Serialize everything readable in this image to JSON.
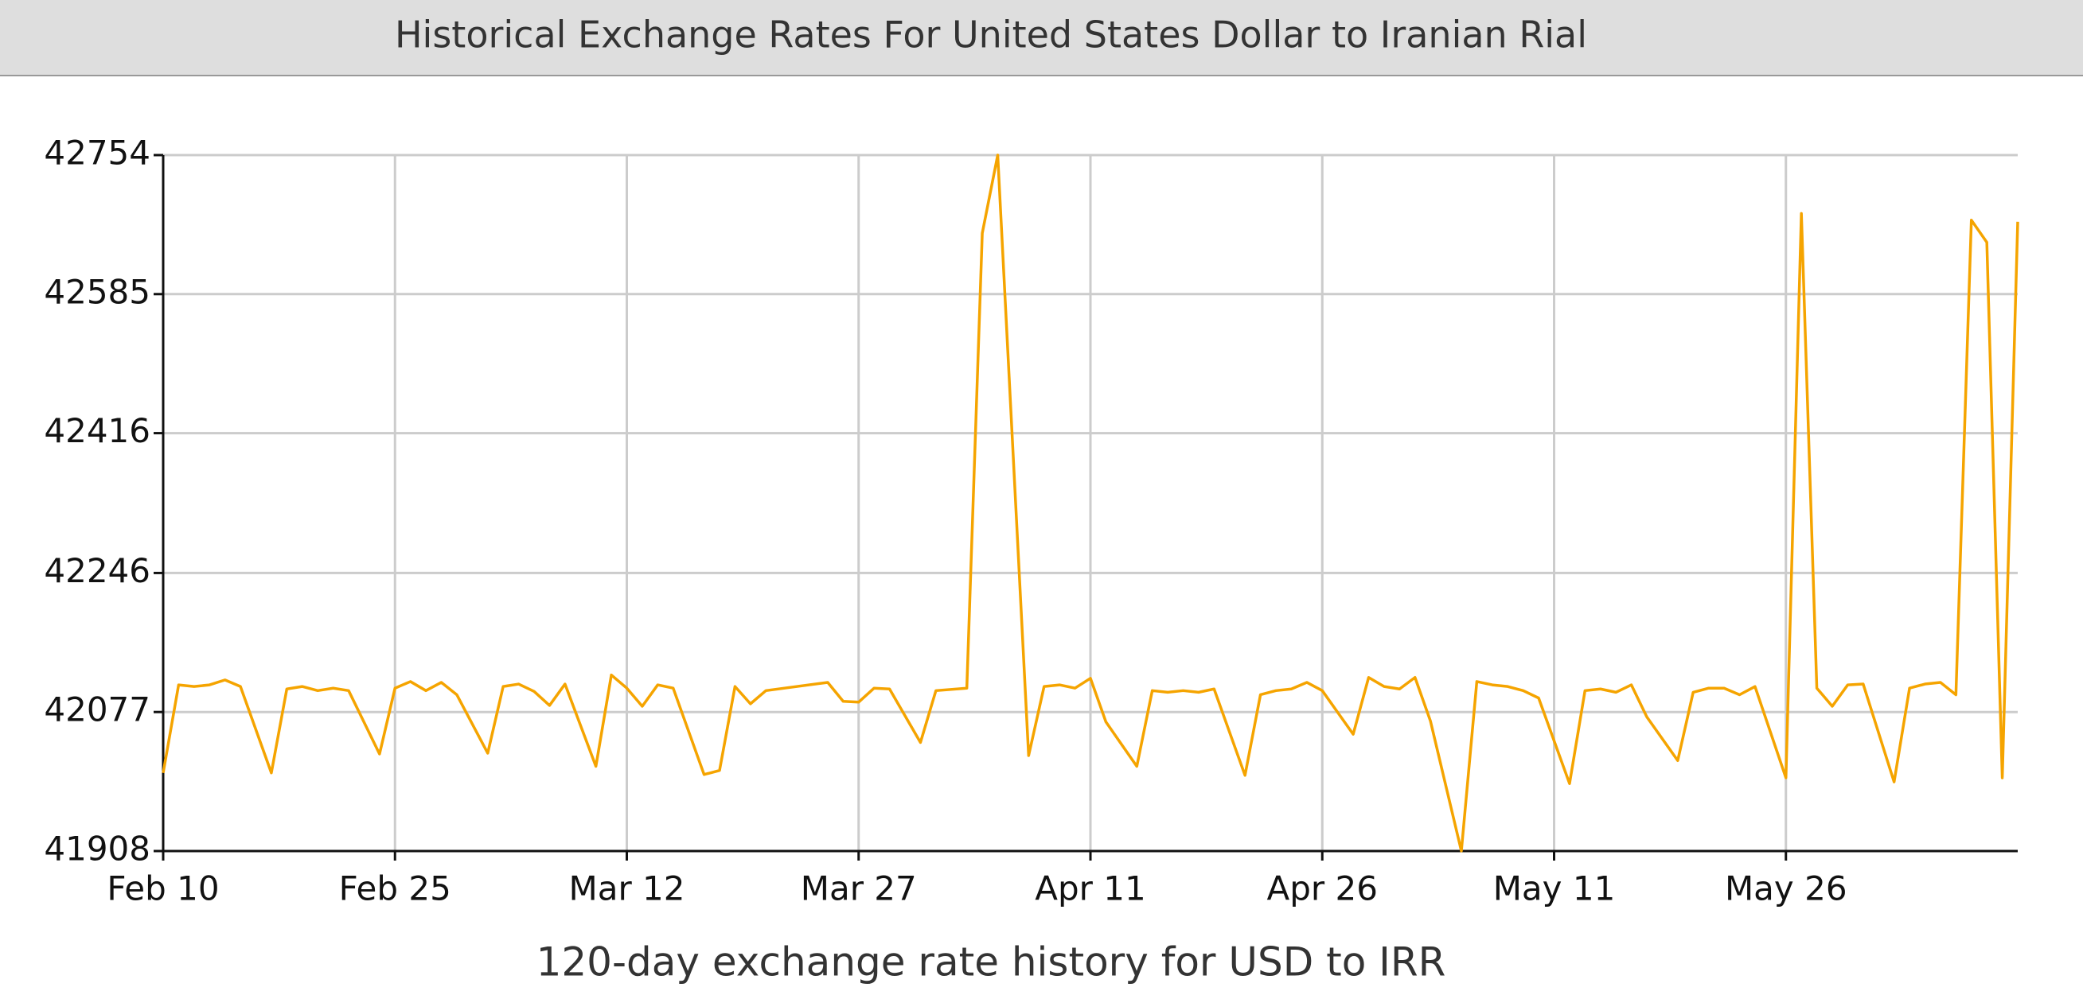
{
  "chart_data": {
    "type": "line",
    "title": "Historical Exchange Rates For United States Dollar to Iranian Rial",
    "xlabel": "120-day exchange rate history for USD to IRR",
    "x": [
      0,
      1,
      2,
      3,
      4,
      5,
      7,
      8,
      9,
      10,
      11,
      12,
      14,
      15,
      16,
      17,
      18,
      19,
      21,
      22,
      23,
      24,
      25,
      26,
      28,
      29,
      30,
      31,
      32,
      33,
      35,
      36,
      37,
      38,
      39,
      43,
      44,
      45,
      46,
      47,
      49,
      50,
      52,
      53,
      54,
      56,
      57,
      58,
      59,
      60,
      61,
      63,
      64,
      65,
      66,
      67,
      68,
      70,
      71,
      72,
      73,
      74,
      75,
      77,
      78,
      79,
      80,
      81,
      82,
      84,
      85,
      86,
      87,
      88,
      89,
      91,
      92,
      93,
      94,
      95,
      96,
      98,
      99,
      100,
      101,
      102,
      103,
      105,
      106,
      107,
      108,
      109,
      110,
      112,
      113,
      114,
      115,
      116,
      117,
      118,
      119,
      120
    ],
    "series": [
      {
        "name": "USD to IRR",
        "color": "#f5a400",
        "values": [
          42003,
          42110,
          42108,
          42110,
          42116,
          42108,
          42003,
          42105,
          42108,
          42103,
          42106,
          42103,
          42026,
          42106,
          42114,
          42103,
          42113,
          42098,
          42027,
          42108,
          42111,
          42102,
          42085,
          42111,
          42011,
          42122,
          42106,
          42084,
          42110,
          42106,
          42001,
          42006,
          42108,
          42087,
          42103,
          42113,
          42090,
          42089,
          42106,
          42105,
          42040,
          42103,
          42106,
          42659,
          42754,
          42024,
          42108,
          42110,
          42106,
          42118,
          42065,
          42011,
          42103,
          42101,
          42103,
          42101,
          42105,
          42000,
          42098,
          42103,
          42105,
          42113,
          42103,
          42050,
          42119,
          42108,
          42105,
          42119,
          42066,
          41908,
          42114,
          42110,
          42108,
          42103,
          42094,
          41990,
          42103,
          42105,
          42101,
          42110,
          42071,
          42018,
          42101,
          42106,
          42106,
          42098,
          42108,
          41997,
          42683,
          42106,
          42084,
          42110,
          42111,
          41992,
          42106,
          42111,
          42113,
          42098,
          42675,
          42648,
          41997,
          42673
        ]
      }
    ],
    "xlim": [
      0,
      120
    ],
    "xticks": [
      {
        "value": 0,
        "label": "Feb 10"
      },
      {
        "value": 15,
        "label": "Feb 25"
      },
      {
        "value": 30,
        "label": "Mar 12"
      },
      {
        "value": 45,
        "label": "Mar 27"
      },
      {
        "value": 60,
        "label": "Apr 11"
      },
      {
        "value": 75,
        "label": "Apr 26"
      },
      {
        "value": 90,
        "label": "May 11"
      },
      {
        "value": 105,
        "label": "May 26"
      }
    ],
    "ylim": [
      41908,
      42754
    ],
    "yticks": [
      41908,
      42077,
      42246,
      42416,
      42585,
      42754
    ],
    "grid": true
  }
}
